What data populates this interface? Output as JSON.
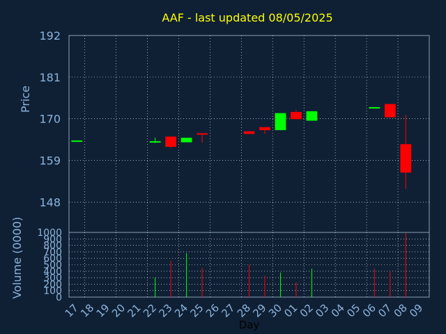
{
  "title": "AAF - last updated 08/05/2025",
  "colors": {
    "background": "#0f2035",
    "title": "#ffff00",
    "axis_text": "#8cb4dc",
    "grid": "#ffffff",
    "up": "#00ff00",
    "down": "#ff0000"
  },
  "chart_data": [
    {
      "type": "candlestick",
      "ylabel": "Price",
      "ylim": [
        140,
        192
      ],
      "yticks": [
        148,
        159,
        170,
        181,
        192
      ],
      "grid": true,
      "days": [
        "17",
        "18",
        "19",
        "20",
        "21",
        "22",
        "23",
        "24",
        "25",
        "26",
        "27",
        "28",
        "29",
        "30",
        "01",
        "02",
        "03",
        "04",
        "05",
        "06",
        "07",
        "08",
        "09"
      ],
      "candles": [
        {
          "day": "17",
          "open": 164.1,
          "close": 164.1,
          "high": 164.1,
          "low": 164.1
        },
        {
          "day": "22",
          "open": 163.9,
          "close": 163.9,
          "high": 165.0,
          "low": 163.6
        },
        {
          "day": "23",
          "open": 165.3,
          "close": 162.6,
          "high": 165.3,
          "low": 162.3
        },
        {
          "day": "24",
          "open": 163.8,
          "close": 165.0,
          "high": 165.0,
          "low": 163.8
        },
        {
          "day": "25",
          "open": 166.0,
          "close": 165.8,
          "high": 166.0,
          "low": 163.7
        },
        {
          "day": "28",
          "open": 166.7,
          "close": 166.0,
          "high": 166.7,
          "low": 166.0
        },
        {
          "day": "29",
          "open": 167.8,
          "close": 167.0,
          "high": 167.8,
          "low": 166.0
        },
        {
          "day": "30",
          "open": 167.0,
          "close": 171.5,
          "high": 171.5,
          "low": 167.0
        },
        {
          "day": "01",
          "open": 171.8,
          "close": 169.9,
          "high": 172.4,
          "low": 169.9
        },
        {
          "day": "02",
          "open": 169.5,
          "close": 172.0,
          "high": 172.0,
          "low": 169.5
        },
        {
          "day": "06",
          "open": 172.9,
          "close": 172.9,
          "high": 172.9,
          "low": 172.9
        },
        {
          "day": "07",
          "open": 173.9,
          "close": 170.4,
          "high": 173.9,
          "low": 170.4
        },
        {
          "day": "08",
          "open": 163.3,
          "close": 155.8,
          "high": 171.0,
          "low": 151.5
        }
      ]
    },
    {
      "type": "bar",
      "ylabel": "Volume (0000)",
      "xlabel": "Day",
      "ylim": [
        0,
        1000
      ],
      "yticks": [
        0,
        100,
        200,
        300,
        400,
        500,
        600,
        700,
        800,
        900,
        1000
      ],
      "grid": true,
      "bars": [
        {
          "day": "17",
          "value": 5,
          "dir": "up"
        },
        {
          "day": "22",
          "value": 300,
          "dir": "up"
        },
        {
          "day": "23",
          "value": 560,
          "dir": "down"
        },
        {
          "day": "24",
          "value": 680,
          "dir": "up"
        },
        {
          "day": "25",
          "value": 450,
          "dir": "down"
        },
        {
          "day": "28",
          "value": 500,
          "dir": "down"
        },
        {
          "day": "29",
          "value": 330,
          "dir": "down"
        },
        {
          "day": "30",
          "value": 380,
          "dir": "up"
        },
        {
          "day": "01",
          "value": 230,
          "dir": "down"
        },
        {
          "day": "02",
          "value": 440,
          "dir": "up"
        },
        {
          "day": "06",
          "value": 440,
          "dir": "down"
        },
        {
          "day": "07",
          "value": 400,
          "dir": "down"
        },
        {
          "day": "08",
          "value": 990,
          "dir": "down"
        }
      ]
    }
  ]
}
